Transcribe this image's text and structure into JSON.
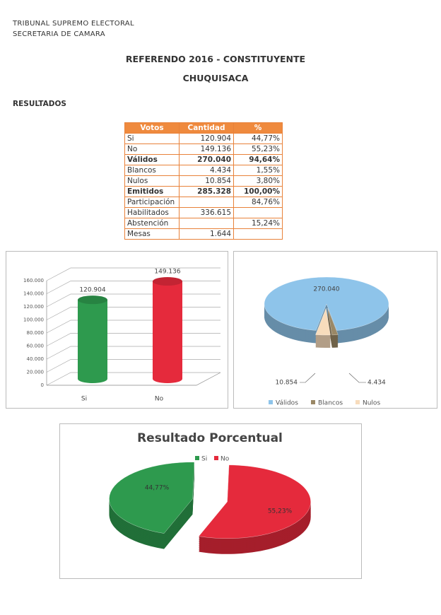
{
  "document": {
    "header": {
      "organization": [
        "TRIBUNAL SUPREMO ELECTORAL",
        "SECRETARIA DE CAMARA"
      ],
      "title": "REFERENDO 2016 - CONSTITUYENTE",
      "subtitle": "CHUQUISACA",
      "section": "RESULTADOS"
    },
    "table": {
      "columns": [
        "Votos",
        "Cantidad",
        "%"
      ],
      "rows": [
        [
          "Si",
          "120.904",
          "44,77%"
        ],
        [
          "No",
          "149.136",
          "55,23%"
        ],
        [
          "Válidos",
          "270.040",
          "94,64%"
        ],
        [
          "Blancos",
          "4.434",
          "1,55%"
        ],
        [
          "Nulos",
          "10.854",
          "3,80%"
        ],
        [
          "Emitidos",
          "285.328",
          "100,00%"
        ],
        [
          "Participación",
          null,
          "84,76%"
        ],
        [
          "Habilitados",
          "336.615",
          null
        ],
        [
          "Abstención",
          null,
          "15,24%"
        ],
        [
          "Mesas",
          "1.644",
          null
        ]
      ]
    },
    "charts": [
      {
        "type": "bar",
        "categories": [
          "Si",
          "No"
        ],
        "values": [
          120904,
          149136
        ],
        "value_labels": [
          "120.904",
          "149.136"
        ],
        "colors": [
          "#2e9a4e",
          "#e52a3c"
        ],
        "ylim": [
          0,
          160000
        ],
        "yticks": [
          0,
          {
            "value": 20000,
            "label": "20.000"
          },
          {
            "value": 40000,
            "label": "40.000"
          },
          {
            "value": 60000,
            "label": "60.000"
          },
          {
            "value": 80000,
            "label": "80.000"
          },
          {
            "value": 100000,
            "label": "100.000"
          },
          {
            "value": 120000,
            "label": "120.000"
          },
          {
            "value": 140000,
            "label": "140.000"
          },
          {
            "value": 160000,
            "label": "160.000"
          }
        ],
        "grid": true
      },
      {
        "type": "pie",
        "categories": [
          "Válidos",
          "Blancos",
          "Nulos"
        ],
        "values": [
          270040,
          4434,
          10854
        ],
        "value_labels": [
          "270.040",
          "4.434",
          "10.854"
        ],
        "colors": [
          "#8ec4ea",
          "#9a8866",
          "#f7dcbc"
        ],
        "legend": "bottom"
      },
      {
        "type": "pie",
        "title": "Resultado Porcentual",
        "categories": [
          "Si",
          "No"
        ],
        "values": [
          44.77,
          55.23
        ],
        "value_labels": [
          "44,77%",
          "55,23%"
        ],
        "colors": [
          "#2e9a4e",
          "#e52a3c"
        ],
        "legend": "top"
      }
    ]
  }
}
